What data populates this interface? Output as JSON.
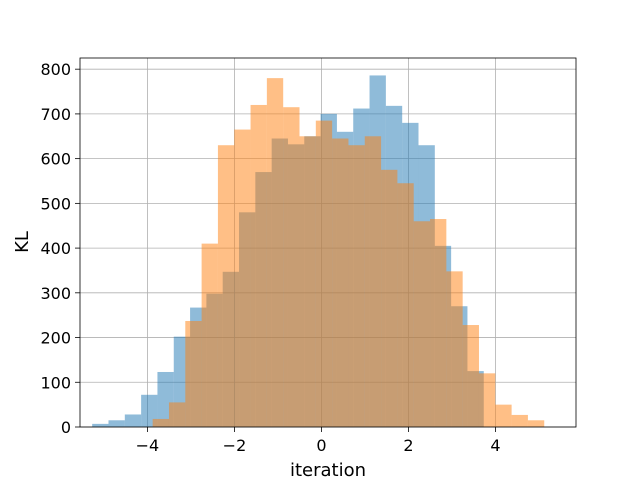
{
  "chart_data": {
    "type": "bar",
    "title": "",
    "xlabel": "iteration",
    "ylabel": "KL",
    "xlim": [
      -5.55,
      5.85
    ],
    "ylim": [
      0,
      825
    ],
    "xticks": [
      -4,
      -2,
      0,
      2,
      4
    ],
    "xtick_labels": [
      "−4",
      "−2",
      "0",
      "2",
      "4"
    ],
    "yticks": [
      0,
      100,
      200,
      300,
      400,
      500,
      600,
      700,
      800
    ],
    "ytick_labels": [
      "0",
      "100",
      "200",
      "300",
      "400",
      "500",
      "600",
      "700",
      "800"
    ],
    "grid": true,
    "legend": "none",
    "series": [
      {
        "color": "#1f77b4",
        "opacity": 0.5,
        "bin_edges": [
          -5.27,
          -4.895,
          -4.52,
          -4.145,
          -3.77,
          -3.395,
          -3.02,
          -2.645,
          -2.27,
          -1.895,
          -1.52,
          -1.145,
          -0.77,
          -0.395,
          -0.02,
          0.355,
          0.73,
          1.105,
          1.48,
          1.855,
          2.23,
          2.605,
          2.98,
          3.355,
          3.73
        ],
        "counts": [
          7,
          15,
          28,
          72,
          123,
          202,
          267,
          298,
          347,
          480,
          570,
          645,
          632,
          650,
          700,
          660,
          712,
          786,
          718,
          680,
          630,
          405,
          270,
          125
        ]
      },
      {
        "color": "#ff7f0e",
        "opacity": 0.5,
        "bin_edges": [
          -3.88,
          -3.505,
          -3.13,
          -2.755,
          -2.38,
          -2.005,
          -1.63,
          -1.255,
          -0.88,
          -0.505,
          -0.13,
          0.245,
          0.62,
          0.995,
          1.37,
          1.745,
          2.12,
          2.495,
          2.87,
          3.245,
          3.62,
          3.995,
          4.37,
          4.745,
          5.12
        ],
        "counts": [
          18,
          55,
          237,
          410,
          630,
          665,
          720,
          780,
          715,
          650,
          685,
          645,
          630,
          650,
          575,
          545,
          460,
          465,
          348,
          228,
          120,
          50,
          27,
          15
        ]
      }
    ]
  }
}
